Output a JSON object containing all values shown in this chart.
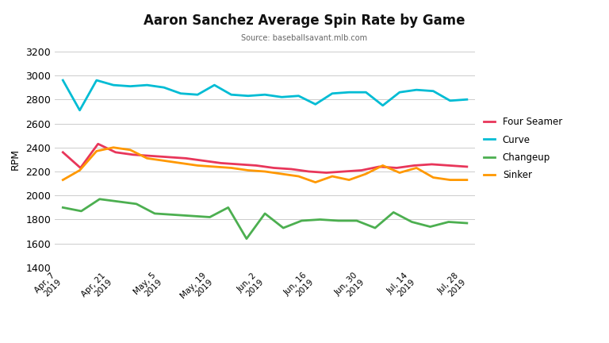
{
  "title": "Aaron Sanchez Average Spin Rate by Game",
  "subtitle": "Source: baseballsavant.mlb.com",
  "ylabel": "RPM",
  "ylim": [
    1400,
    3200
  ],
  "yticks": [
    1400,
    1600,
    1800,
    2000,
    2200,
    2400,
    2600,
    2800,
    3000,
    3200
  ],
  "x_labels": [
    "Apr, 7\n2019",
    "Apr, 21\n2019",
    "May, 5\n2019",
    "May, 19\n2019",
    "Jun, 2\n2019",
    "Jun, 16\n2019",
    "Jun, 30\n2019",
    "Jul, 14\n2019",
    "Jul, 28\n2019"
  ],
  "four_seamer": [
    2360,
    2230,
    2430,
    2360,
    2340,
    2330,
    2320,
    2310,
    2290,
    2270,
    2260,
    2250,
    2230,
    2220,
    2200,
    2190,
    2200,
    2210,
    2240,
    2230,
    2250,
    2260,
    2250,
    2240
  ],
  "curve": [
    2960,
    2710,
    2960,
    2920,
    2910,
    2920,
    2900,
    2850,
    2840,
    2920,
    2840,
    2830,
    2840,
    2820,
    2830,
    2760,
    2850,
    2860,
    2860,
    2750,
    2860,
    2880,
    2870,
    2790,
    2800
  ],
  "changeup": [
    1900,
    1870,
    1970,
    1950,
    1930,
    1850,
    1840,
    1830,
    1820,
    1900,
    1640,
    1850,
    1730,
    1790,
    1800,
    1790,
    1790,
    1730,
    1860,
    1780,
    1740,
    1780,
    1770
  ],
  "sinker": [
    2130,
    2210,
    2370,
    2400,
    2380,
    2310,
    2290,
    2270,
    2250,
    2240,
    2230,
    2210,
    2200,
    2180,
    2160,
    2110,
    2160,
    2130,
    2180,
    2250,
    2190,
    2230,
    2150,
    2130,
    2130
  ],
  "four_seamer_color": "#e8365a",
  "curve_color": "#00bcd4",
  "changeup_color": "#4caf50",
  "sinker_color": "#ff9800",
  "bg_color": "#ffffff",
  "grid_color": "#cccccc",
  "linewidth": 2.0
}
